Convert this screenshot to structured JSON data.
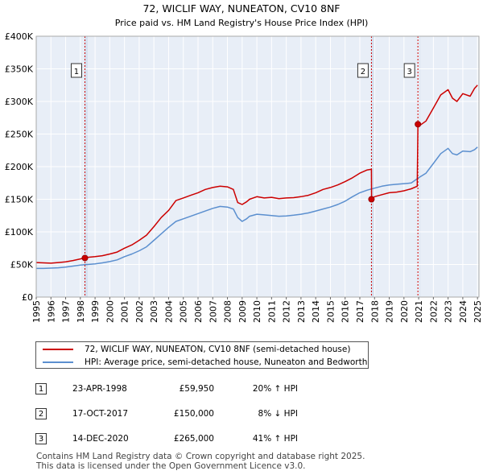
{
  "chart_data": {
    "type": "line",
    "title": "72, WICLIF WAY, NUNEATON, CV10 8NF",
    "subtitle": "Price paid vs. HM Land Registry's House Price Index (HPI)",
    "xlabel": "",
    "ylabel": "",
    "xlim": [
      1995,
      2025.1
    ],
    "ylim": [
      0,
      400000
    ],
    "x_ticks": [
      1995,
      1996,
      1997,
      1998,
      1999,
      2000,
      2001,
      2002,
      2003,
      2004,
      2005,
      2006,
      2007,
      2008,
      2009,
      2010,
      2011,
      2012,
      2013,
      2014,
      2015,
      2016,
      2017,
      2018,
      2019,
      2020,
      2021,
      2022,
      2023,
      2024,
      2025
    ],
    "y_ticks": [
      0,
      50000,
      100000,
      150000,
      200000,
      250000,
      300000,
      350000,
      400000
    ],
    "y_tick_labels": [
      "£0",
      "£50K",
      "£100K",
      "£150K",
      "£200K",
      "£250K",
      "£300K",
      "£350K",
      "£400K"
    ],
    "grid": true,
    "series": [
      {
        "name": "72, WICLIF WAY, NUNEATON, CV10 8NF (semi-detached house)",
        "color": "#cc0000",
        "x": [
          1995,
          1995.5,
          1996,
          1996.5,
          1997,
          1997.5,
          1998,
          1998.3,
          1998.5,
          1999,
          1999.5,
          2000,
          2000.5,
          2001,
          2001.5,
          2002,
          2002.5,
          2003,
          2003.5,
          2004,
          2004.5,
          2005,
          2005.5,
          2006,
          2006.5,
          2007,
          2007.5,
          2008,
          2008.4,
          2008.7,
          2009,
          2009.3,
          2009.5,
          2010,
          2010.5,
          2011,
          2011.5,
          2012,
          2012.5,
          2013,
          2013.5,
          2014,
          2014.5,
          2015,
          2015.5,
          2016,
          2016.5,
          2017,
          2017.5,
          2017.79,
          2017.8,
          2018,
          2018.5,
          2019,
          2019.5,
          2020,
          2020.5,
          2020.9,
          2020.95,
          2021,
          2021.5,
          2022,
          2022.5,
          2023,
          2023.3,
          2023.6,
          2024,
          2024.5,
          2024.8,
          2025
        ],
        "values": [
          53000,
          52500,
          52000,
          53000,
          54000,
          56000,
          58500,
          59950,
          61000,
          62000,
          63500,
          66000,
          69000,
          75000,
          80000,
          87000,
          95000,
          108000,
          122000,
          133000,
          148000,
          152000,
          156000,
          160000,
          165000,
          168000,
          170000,
          169000,
          165000,
          145000,
          142000,
          146000,
          150000,
          154000,
          152000,
          153000,
          151000,
          152000,
          152500,
          154000,
          156000,
          160000,
          165000,
          168000,
          172000,
          177000,
          183000,
          190000,
          195000,
          196000,
          150000,
          154000,
          157000,
          160000,
          161000,
          163000,
          166000,
          170000,
          265000,
          262000,
          270000,
          290000,
          310000,
          318000,
          305000,
          300000,
          312000,
          308000,
          320000,
          325000
        ]
      },
      {
        "name": "HPI: Average price, semi-detached house, Nuneaton and Bedworth",
        "color": "#5b8fcf",
        "x": [
          1995,
          1995.5,
          1996,
          1996.5,
          1997,
          1997.5,
          1998,
          1998.5,
          1999,
          1999.5,
          2000,
          2000.5,
          2001,
          2001.5,
          2002,
          2002.5,
          2003,
          2003.5,
          2004,
          2004.5,
          2005,
          2005.5,
          2006,
          2006.5,
          2007,
          2007.5,
          2008,
          2008.4,
          2008.7,
          2009,
          2009.3,
          2009.5,
          2010,
          2010.5,
          2011,
          2011.5,
          2012,
          2012.5,
          2013,
          2013.5,
          2014,
          2014.5,
          2015,
          2015.5,
          2016,
          2016.5,
          2017,
          2017.5,
          2018,
          2018.5,
          2019,
          2019.5,
          2020,
          2020.5,
          2021,
          2021.5,
          2022,
          2022.5,
          2023,
          2023.3,
          2023.6,
          2024,
          2024.5,
          2024.8,
          2025
        ],
        "values": [
          44000,
          44000,
          44500,
          45000,
          46000,
          47500,
          49000,
          50000,
          51000,
          52500,
          54500,
          57000,
          62000,
          66000,
          71000,
          77000,
          87000,
          97000,
          107000,
          116000,
          120000,
          124000,
          128000,
          132000,
          136000,
          139000,
          138000,
          135000,
          122000,
          116000,
          120000,
          124000,
          127000,
          126000,
          125000,
          124000,
          124500,
          125500,
          127000,
          129000,
          132000,
          135000,
          138000,
          142000,
          147000,
          154000,
          160000,
          164000,
          167000,
          170000,
          172000,
          173000,
          174000,
          175000,
          183000,
          190000,
          205000,
          220000,
          228000,
          220000,
          218000,
          224000,
          223000,
          226000,
          230000
        ]
      }
    ],
    "sale_points": [
      {
        "x": 1998.31,
        "value": 59950,
        "label": "1"
      },
      {
        "x": 2017.79,
        "value": 150000,
        "label": "2"
      },
      {
        "x": 2020.95,
        "value": 265000,
        "label": "3"
      }
    ],
    "sale_markers": [
      {
        "label": "1",
        "x": 1998.31,
        "band_end": 1998.5
      },
      {
        "label": "2",
        "x": 2017.79,
        "band_end": 2018.0
      },
      {
        "label": "3",
        "x": 2020.95,
        "band_end": 2021.1
      }
    ]
  },
  "legend": {
    "items": [
      {
        "label": "72, WICLIF WAY, NUNEATON, CV10 8NF (semi-detached house)",
        "color": "#cc0000"
      },
      {
        "label": "HPI: Average price, semi-detached house, Nuneaton and Bedworth",
        "color": "#5b8fcf"
      }
    ]
  },
  "transactions": [
    {
      "num": "1",
      "date": "23-APR-1998",
      "price": "£59,950",
      "hpi": "20% ↑ HPI"
    },
    {
      "num": "2",
      "date": "17-OCT-2017",
      "price": "£150,000",
      "hpi": "8% ↓ HPI"
    },
    {
      "num": "3",
      "date": "14-DEC-2020",
      "price": "£265,000",
      "hpi": "41% ↑ HPI"
    }
  ],
  "footer": {
    "line1": "Contains HM Land Registry data © Crown copyright and database right 2025.",
    "line2": "This data is licensed under the Open Government Licence v3.0."
  }
}
